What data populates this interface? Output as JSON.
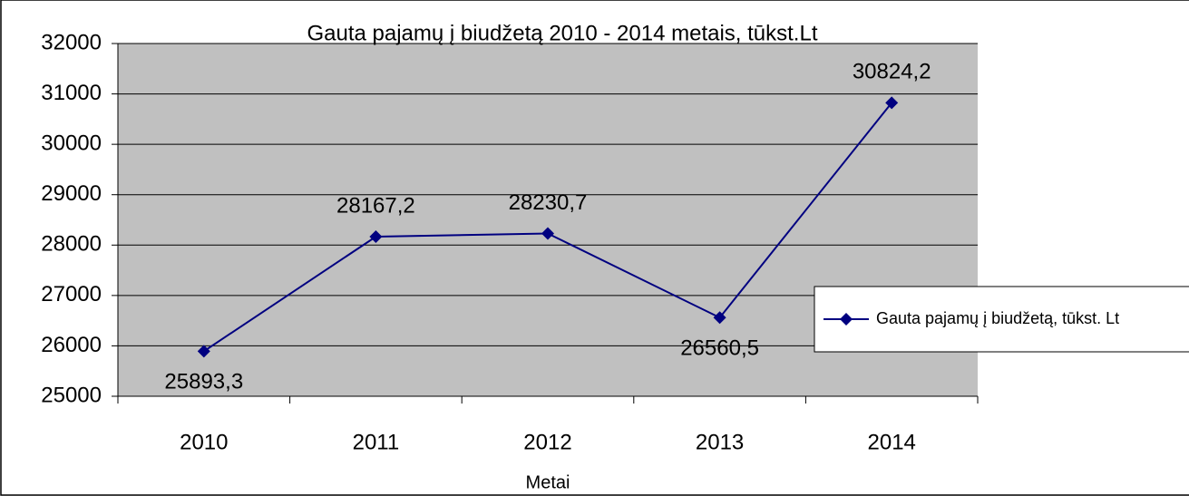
{
  "chart_data": {
    "type": "line",
    "title": "Gauta pajamų į biudžetą 2010 - 2014 metais, tūkst.Lt",
    "x_label": "Metai",
    "categories": [
      "2010",
      "2011",
      "2012",
      "2013",
      "2014"
    ],
    "series": [
      {
        "name": "Gauta pajamų į biudžetą, tūkst. Lt",
        "color": "#000080",
        "values": [
          25893.3,
          28167.2,
          28230.7,
          26560.5,
          30824.2
        ],
        "value_labels": [
          "25893,3",
          "28167,2",
          "28230,7",
          "26560,5",
          "30824,2"
        ]
      }
    ],
    "ylim": [
      25000,
      32000
    ],
    "yticks": [
      25000,
      26000,
      27000,
      28000,
      29000,
      30000,
      31000,
      32000
    ],
    "grid": true,
    "legend": "right"
  }
}
